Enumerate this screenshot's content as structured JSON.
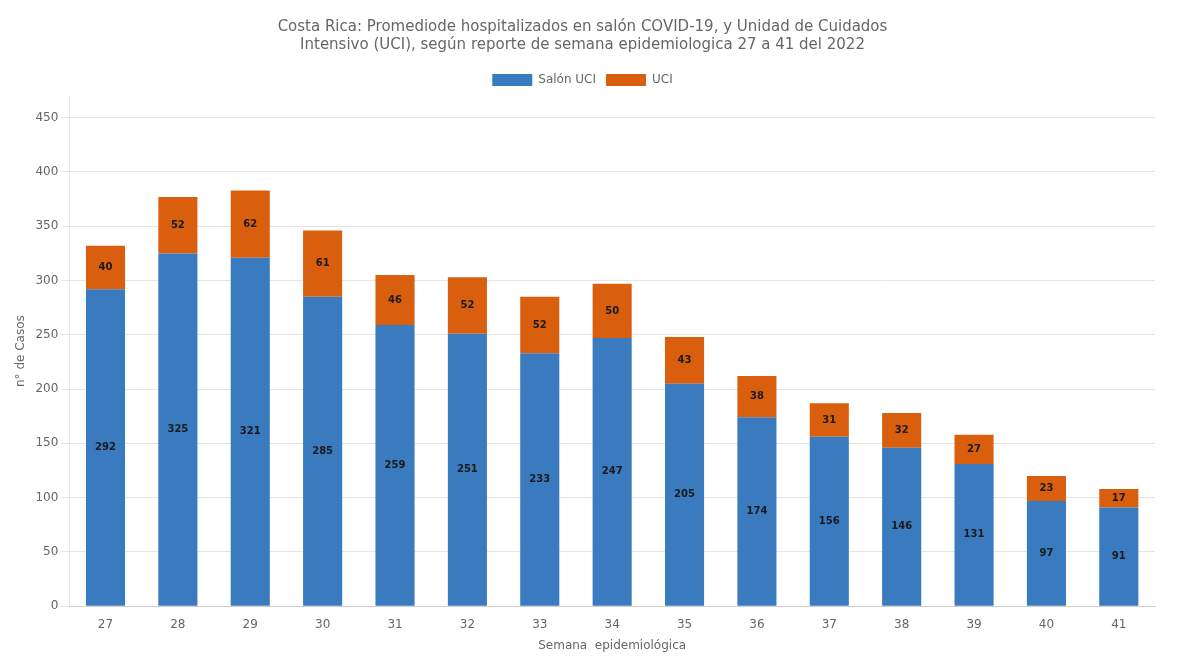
{
  "chart_data": {
    "type": "bar",
    "title": [
      "Costa Rica: Promediode hospitalizados en salón COVID-19, y Unidad de Cuidados",
      "Intensivo (UCI), según reporte de semana epidemiologica 27 a 41 del 2022"
    ],
    "xlabel": "Semana  epidemiológica",
    "ylabel": "n° de Casos",
    "categories": [
      "27",
      "28",
      "29",
      "30",
      "31",
      "32",
      "33",
      "34",
      "35",
      "36",
      "37",
      "38",
      "39",
      "40",
      "41"
    ],
    "series": [
      {
        "name": "Salón UCI",
        "color": "#3a7abf",
        "values": [
          292,
          325,
          321,
          285,
          259,
          251,
          233,
          247,
          205,
          174,
          156,
          146,
          131,
          97,
          91
        ]
      },
      {
        "name": "UCI",
        "color": "#d95f0e",
        "values": [
          40,
          52,
          62,
          61,
          46,
          52,
          52,
          50,
          43,
          38,
          31,
          32,
          27,
          23,
          17
        ]
      }
    ],
    "stacked": true,
    "data_labels": true,
    "ylim": [
      0,
      470
    ],
    "yticks": [
      0,
      50,
      100,
      150,
      200,
      250,
      300,
      350,
      400,
      450
    ],
    "grid": true,
    "legend": "top"
  }
}
